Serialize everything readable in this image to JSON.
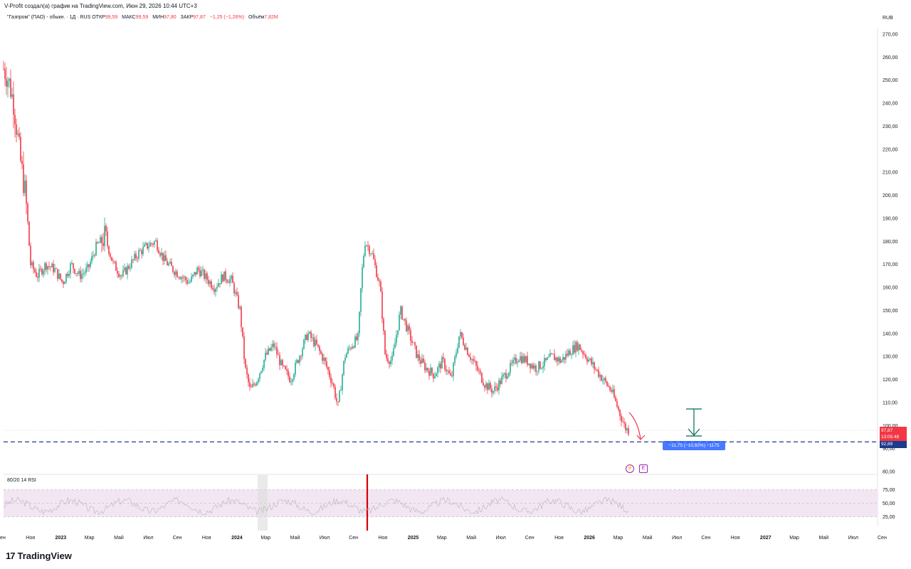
{
  "header": {
    "credit": "V-Profit создал(а) график на TradingView.com, Июн 29, 2026 10:44 UTC+3",
    "symbol": "\"Газпром\" (ПАО) - обыкн. · 1Д · RUS",
    "open_label": "ОТКР",
    "open": "99,59",
    "high_label": "МАКС",
    "high": "99,59",
    "low_label": "МИН",
    "low": "97,80",
    "close_label": "ЗАКР",
    "close": "97,87",
    "change": "−1,25 (−1,26%)",
    "volume_label": "Объём",
    "volume": "7,82M",
    "currency": "RUB"
  },
  "tags": {
    "last_price": "97,87",
    "countdown": "13:05:48",
    "target_price": "92,89"
  },
  "measure": {
    "label": "−11,75 (−10,92%) −1175"
  },
  "rsi": {
    "label": "80/20 14 RSI",
    "ticks": [
      "75,00",
      "50,00",
      "25,00"
    ]
  },
  "brand": {
    "logo_text": "TradingView",
    "logo_mark": "17"
  },
  "colors": {
    "up": "#22ab94",
    "down": "#f23645",
    "accent": "#2962ff",
    "rsi_band": "#f2e6f3"
  },
  "chart_data": {
    "type": "candlestick",
    "title": "\"Газпром\" (ПАО) - обыкн. · 1Д · RUS",
    "ylabel": "RUB",
    "ylim": [
      80,
      270
    ],
    "price_ticks": [
      "270,00",
      "260,00",
      "250,00",
      "240,00",
      "230,00",
      "220,00",
      "210,00",
      "200,00",
      "190,00",
      "180,00",
      "170,00",
      "160,00",
      "150,00",
      "140,00",
      "130,00",
      "120,00",
      "110,00",
      "100,00",
      "90,00",
      "80,00"
    ],
    "time_ticks": [
      {
        "label": "Сен",
        "bold": false
      },
      {
        "label": "Ноя",
        "bold": false
      },
      {
        "label": "2023",
        "bold": true
      },
      {
        "label": "Мар",
        "bold": false
      },
      {
        "label": "Май",
        "bold": false
      },
      {
        "label": "Июл",
        "bold": false
      },
      {
        "label": "Сен",
        "bold": false
      },
      {
        "label": "Ноя",
        "bold": false
      },
      {
        "label": "2024",
        "bold": true
      },
      {
        "label": "Мар",
        "bold": false
      },
      {
        "label": "Май",
        "bold": false
      },
      {
        "label": "Июл",
        "bold": false
      },
      {
        "label": "Сен",
        "bold": false
      },
      {
        "label": "Ноя",
        "bold": false
      },
      {
        "label": "2025",
        "bold": true
      },
      {
        "label": "Мар",
        "bold": false
      },
      {
        "label": "Май",
        "bold": false
      },
      {
        "label": "Июл",
        "bold": false
      },
      {
        "label": "Сен",
        "bold": false
      },
      {
        "label": "Ноя",
        "bold": false
      },
      {
        "label": "2026",
        "bold": true
      },
      {
        "label": "Мар",
        "bold": false
      },
      {
        "label": "Май",
        "bold": false
      },
      {
        "label": "Июл",
        "bold": false
      },
      {
        "label": "Сен",
        "bold": false
      },
      {
        "label": "Ноя",
        "bold": false
      },
      {
        "label": "2027",
        "bold": true
      },
      {
        "label": "Мар",
        "bold": false
      },
      {
        "label": "Май",
        "bold": false
      },
      {
        "label": "Июл",
        "bold": false
      },
      {
        "label": "Сен",
        "bold": false
      }
    ],
    "price_path": [
      [
        0,
        255
      ],
      [
        0.3,
        250
      ],
      [
        0.6,
        240
      ],
      [
        1.0,
        215
      ],
      [
        1.3,
        200
      ],
      [
        1.6,
        170
      ],
      [
        2.0,
        165
      ],
      [
        2.5,
        170
      ],
      [
        3.0,
        168
      ],
      [
        3.5,
        162
      ],
      [
        4.0,
        170
      ],
      [
        4.5,
        165
      ],
      [
        5.0,
        168
      ],
      [
        5.5,
        178
      ],
      [
        6.0,
        182
      ],
      [
        6.5,
        170
      ],
      [
        7.0,
        165
      ],
      [
        7.5,
        170
      ],
      [
        8.0,
        175
      ],
      [
        8.5,
        178
      ],
      [
        9.0,
        180
      ],
      [
        9.5,
        172
      ],
      [
        10.0,
        168
      ],
      [
        10.5,
        165
      ],
      [
        11.0,
        162
      ],
      [
        11.5,
        168
      ],
      [
        12.0,
        164
      ],
      [
        12.5,
        160
      ],
      [
        13.0,
        165
      ],
      [
        13.5,
        163
      ],
      [
        14.0,
        150
      ],
      [
        14.3,
        125
      ],
      [
        14.6,
        115
      ],
      [
        15.0,
        120
      ],
      [
        15.5,
        130
      ],
      [
        16.0,
        135
      ],
      [
        16.5,
        125
      ],
      [
        17.0,
        120
      ],
      [
        17.5,
        130
      ],
      [
        18.0,
        140
      ],
      [
        18.5,
        135
      ],
      [
        19.0,
        128
      ],
      [
        19.5,
        118
      ],
      [
        19.8,
        108
      ],
      [
        20.2,
        130
      ],
      [
        20.6,
        135
      ],
      [
        21.0,
        138
      ],
      [
        21.2,
        165
      ],
      [
        21.4,
        180
      ],
      [
        21.8,
        175
      ],
      [
        22.3,
        160
      ],
      [
        22.6,
        130
      ],
      [
        23.0,
        128
      ],
      [
        23.5,
        150
      ],
      [
        24.0,
        140
      ],
      [
        24.5,
        130
      ],
      [
        25.0,
        125
      ],
      [
        25.5,
        122
      ],
      [
        26.0,
        128
      ],
      [
        26.5,
        120
      ],
      [
        27.0,
        140
      ],
      [
        27.5,
        132
      ],
      [
        28.0,
        125
      ],
      [
        28.5,
        118
      ],
      [
        29.0,
        115
      ],
      [
        29.5,
        120
      ],
      [
        30.0,
        125
      ],
      [
        30.5,
        130
      ],
      [
        31.0,
        128
      ],
      [
        31.5,
        125
      ],
      [
        32.0,
        127
      ],
      [
        32.5,
        130
      ],
      [
        33.0,
        128
      ],
      [
        33.5,
        132
      ],
      [
        34.0,
        135
      ],
      [
        34.5,
        130
      ],
      [
        35.0,
        125
      ],
      [
        35.5,
        120
      ],
      [
        36.0,
        115
      ],
      [
        36.5,
        105
      ],
      [
        36.8,
        99
      ],
      [
        37.0,
        97.87
      ]
    ],
    "price_line": 92.89,
    "last_price": 97.87,
    "rsi_levels": [
      75,
      50,
      25
    ],
    "rsi_ylim": [
      15,
      85
    ]
  }
}
